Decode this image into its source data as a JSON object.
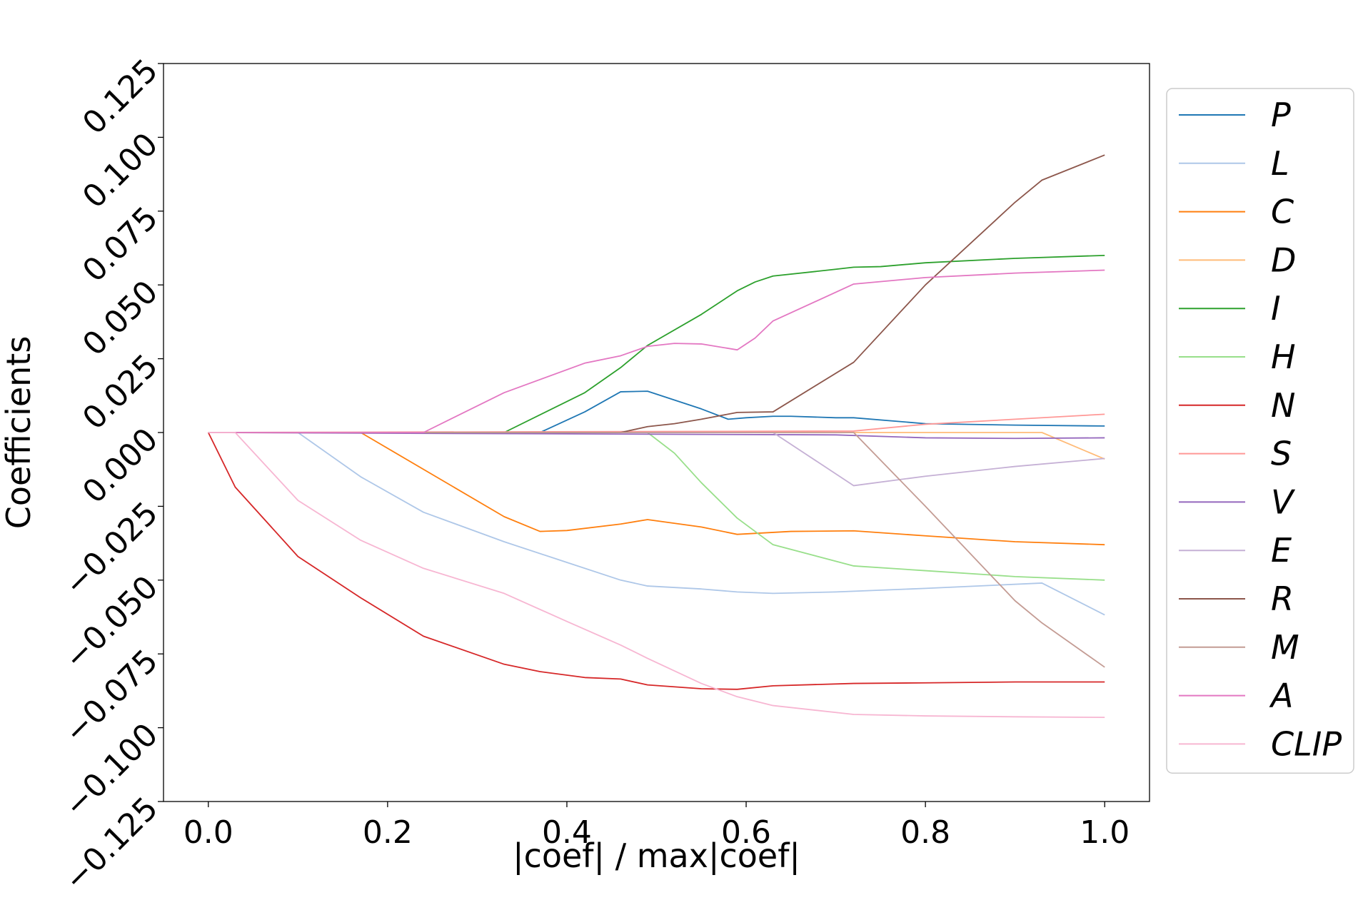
{
  "chart_data": {
    "type": "line",
    "title": "",
    "xlabel": "|coef| / max|coef|",
    "ylabel": "Coefficients",
    "xlim": [
      -0.05,
      1.05
    ],
    "ylim": [
      -0.125,
      0.125
    ],
    "xticks": [
      0.0,
      0.2,
      0.4,
      0.6,
      0.8,
      1.0
    ],
    "xtick_labels": [
      "0.0",
      "0.2",
      "0.4",
      "0.6",
      "0.8",
      "1.0"
    ],
    "yticks": [
      -0.125,
      -0.1,
      -0.075,
      -0.05,
      -0.025,
      0.0,
      0.025,
      0.05,
      0.075,
      0.1,
      0.125
    ],
    "ytick_labels": [
      "−0.125",
      "−0.100",
      "−0.075",
      "−0.050",
      "−0.025",
      "0.000",
      "0.025",
      "0.050",
      "0.075",
      "0.100",
      "0.125"
    ],
    "ytick_rotation_deg": -45,
    "grid": false,
    "legend_position": "outside-right",
    "series": [
      {
        "name": "P",
        "color": "#1f77b4",
        "x": [
          0.0,
          0.37,
          0.42,
          0.46,
          0.49,
          0.55,
          0.58,
          0.6,
          0.63,
          0.65,
          0.7,
          0.72,
          0.8,
          0.9,
          1.0
        ],
        "y": [
          0.0,
          0.0,
          0.007,
          0.0138,
          0.014,
          0.008,
          0.0045,
          0.005,
          0.0055,
          0.0055,
          0.005,
          0.005,
          0.003,
          0.0025,
          0.0022
        ]
      },
      {
        "name": "L",
        "color": "#aec7e8",
        "x": [
          0.0,
          0.1,
          0.17,
          0.24,
          0.33,
          0.4,
          0.46,
          0.49,
          0.55,
          0.59,
          0.63,
          0.7,
          0.8,
          0.93,
          1.0
        ],
        "y": [
          0.0,
          0.0,
          -0.015,
          -0.027,
          -0.037,
          -0.044,
          -0.05,
          -0.052,
          -0.053,
          -0.054,
          -0.0545,
          -0.054,
          -0.0528,
          -0.051,
          -0.0618
        ]
      },
      {
        "name": "C",
        "color": "#ff7f0e",
        "x": [
          0.0,
          0.17,
          0.33,
          0.37,
          0.4,
          0.46,
          0.49,
          0.55,
          0.59,
          0.65,
          0.72,
          0.8,
          0.9,
          1.0
        ],
        "y": [
          0.0,
          0.0,
          -0.0285,
          -0.0335,
          -0.0332,
          -0.031,
          -0.0295,
          -0.032,
          -0.0345,
          -0.0335,
          -0.0333,
          -0.035,
          -0.037,
          -0.038
        ]
      },
      {
        "name": "D",
        "color": "#ffbb78",
        "x": [
          0.0,
          0.72,
          0.93,
          1.0
        ],
        "y": [
          0.0,
          0.0,
          0.0,
          -0.009
        ]
      },
      {
        "name": "I",
        "color": "#2ca02c",
        "x": [
          0.0,
          0.33,
          0.42,
          0.46,
          0.49,
          0.55,
          0.59,
          0.61,
          0.63,
          0.7,
          0.72,
          0.75,
          0.8,
          0.9,
          1.0
        ],
        "y": [
          0.0,
          0.0,
          0.0135,
          0.022,
          0.0295,
          0.04,
          0.048,
          0.051,
          0.053,
          0.0553,
          0.056,
          0.0562,
          0.0575,
          0.059,
          0.06
        ]
      },
      {
        "name": "H",
        "color": "#98df8a",
        "x": [
          0.0,
          0.49,
          0.52,
          0.55,
          0.59,
          0.63,
          0.72,
          0.8,
          0.9,
          1.0
        ],
        "y": [
          0.0,
          0.0,
          -0.007,
          -0.017,
          -0.029,
          -0.038,
          -0.0452,
          -0.0468,
          -0.0488,
          -0.05
        ]
      },
      {
        "name": "N",
        "color": "#d62728",
        "x": [
          0.0,
          0.03,
          0.1,
          0.17,
          0.24,
          0.33,
          0.37,
          0.42,
          0.46,
          0.49,
          0.55,
          0.59,
          0.63,
          0.72,
          0.8,
          0.9,
          1.0
        ],
        "y": [
          0.0,
          -0.0185,
          -0.042,
          -0.056,
          -0.069,
          -0.0785,
          -0.081,
          -0.083,
          -0.0835,
          -0.0855,
          -0.0868,
          -0.087,
          -0.0858,
          -0.085,
          -0.0848,
          -0.0845,
          -0.0845
        ]
      },
      {
        "name": "S",
        "color": "#ff9896",
        "x": [
          0.0,
          0.72,
          0.8,
          0.9,
          1.0
        ],
        "y": [
          0.0,
          0.0005,
          0.0028,
          0.0045,
          0.0062
        ]
      },
      {
        "name": "V",
        "color": "#9467bd",
        "x": [
          0.0,
          0.7,
          0.8,
          0.9,
          1.0
        ],
        "y": [
          0.0,
          -0.0008,
          -0.0018,
          -0.002,
          -0.0018
        ]
      },
      {
        "name": "E",
        "color": "#c5b0d5",
        "x": [
          0.0,
          0.63,
          0.72,
          0.8,
          0.9,
          1.0
        ],
        "y": [
          0.0,
          0.0,
          -0.018,
          -0.0148,
          -0.0115,
          -0.0088
        ]
      },
      {
        "name": "R",
        "color": "#8c564b",
        "x": [
          0.0,
          0.46,
          0.49,
          0.52,
          0.55,
          0.59,
          0.63,
          0.72,
          0.8,
          0.9,
          0.93,
          1.0
        ],
        "y": [
          0.0,
          0.0,
          0.002,
          0.003,
          0.0045,
          0.0068,
          0.007,
          0.0238,
          0.05,
          0.078,
          0.0855,
          0.094
        ]
      },
      {
        "name": "M",
        "color": "#c49c94",
        "x": [
          0.0,
          0.72,
          0.8,
          0.9,
          0.93,
          1.0
        ],
        "y": [
          0.0,
          0.0,
          -0.025,
          -0.057,
          -0.0645,
          -0.0795
        ]
      },
      {
        "name": "A",
        "color": "#e377c2",
        "x": [
          0.0,
          0.24,
          0.33,
          0.42,
          0.46,
          0.49,
          0.52,
          0.55,
          0.59,
          0.61,
          0.63,
          0.72,
          0.8,
          0.9,
          1.0
        ],
        "y": [
          0.0,
          0.0,
          0.0135,
          0.0235,
          0.026,
          0.0292,
          0.0302,
          0.03,
          0.028,
          0.032,
          0.0378,
          0.0503,
          0.0525,
          0.054,
          0.055
        ]
      },
      {
        "name": "CLIP",
        "color": "#f7b6d2",
        "x": [
          0.0,
          0.03,
          0.1,
          0.17,
          0.24,
          0.33,
          0.4,
          0.46,
          0.49,
          0.55,
          0.59,
          0.63,
          0.72,
          0.8,
          0.9,
          1.0
        ],
        "y": [
          0.0,
          0.0,
          -0.023,
          -0.0365,
          -0.046,
          -0.0545,
          -0.064,
          -0.072,
          -0.0765,
          -0.085,
          -0.0895,
          -0.0925,
          -0.0955,
          -0.096,
          -0.0963,
          -0.0965
        ]
      }
    ]
  }
}
